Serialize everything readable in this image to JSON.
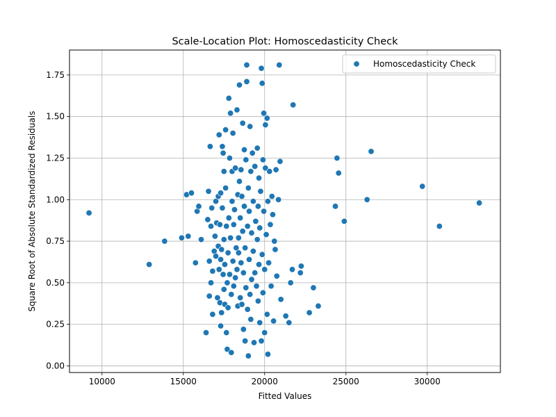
{
  "chart_data": {
    "type": "scatter",
    "title": "Scale-Location Plot: Homoscedasticity Check",
    "xlabel": "Fitted Values",
    "ylabel": "Square Root of Absolute Standardized Residuals",
    "xlim": [
      8000,
      34500
    ],
    "ylim": [
      -0.04,
      1.9
    ],
    "xticks": [
      10000,
      15000,
      20000,
      25000,
      30000
    ],
    "xtick_labels": [
      "10000",
      "15000",
      "20000",
      "25000",
      "30000"
    ],
    "yticks": [
      0.0,
      0.25,
      0.5,
      0.75,
      1.0,
      1.25,
      1.5,
      1.75
    ],
    "ytick_labels": [
      "0.00",
      "0.25",
      "0.50",
      "0.75",
      "1.00",
      "1.25",
      "1.50",
      "1.75"
    ],
    "grid": true,
    "legend_position": "upper-right",
    "marker_color": "#1f77b4",
    "series": [
      {
        "name": "Homoscedasticity Check",
        "points": [
          [
            9200,
            0.92
          ],
          [
            12900,
            0.61
          ],
          [
            13850,
            0.75
          ],
          [
            14900,
            0.77
          ],
          [
            15200,
            1.03
          ],
          [
            15300,
            0.78
          ],
          [
            15500,
            1.04
          ],
          [
            15750,
            0.62
          ],
          [
            15850,
            0.93
          ],
          [
            15950,
            0.96
          ],
          [
            16100,
            0.76
          ],
          [
            16400,
            0.2
          ],
          [
            16500,
            0.88
          ],
          [
            16550,
            1.05
          ],
          [
            16600,
            0.42
          ],
          [
            16600,
            0.63
          ],
          [
            16650,
            1.32
          ],
          [
            16700,
            0.84
          ],
          [
            16700,
            0.5
          ],
          [
            16750,
            0.95
          ],
          [
            16800,
            0.31
          ],
          [
            16800,
            0.57
          ],
          [
            16900,
            0.69
          ],
          [
            16950,
            0.78
          ],
          [
            17000,
            0.66
          ],
          [
            17000,
            0.99
          ],
          [
            17050,
            0.86
          ],
          [
            17100,
            0.41
          ],
          [
            17150,
            0.72
          ],
          [
            17150,
            1.02
          ],
          [
            17200,
            0.58
          ],
          [
            17200,
            1.39
          ],
          [
            17250,
            0.38
          ],
          [
            17250,
            0.85
          ],
          [
            17300,
            0.24
          ],
          [
            17300,
            0.64
          ],
          [
            17300,
            1.04
          ],
          [
            17350,
            0.7
          ],
          [
            17350,
            0.32
          ],
          [
            17400,
            0.95
          ],
          [
            17400,
            1.32
          ],
          [
            17450,
            0.55
          ],
          [
            17450,
            1.28
          ],
          [
            17500,
            0.46
          ],
          [
            17500,
            0.76
          ],
          [
            17500,
            1.17
          ],
          [
            17550,
            0.37
          ],
          [
            17550,
            0.61
          ],
          [
            17600,
            1.07
          ],
          [
            17600,
            1.42
          ],
          [
            17650,
            0.2
          ],
          [
            17650,
            0.84
          ],
          [
            17700,
            0.1
          ],
          [
            17700,
            0.5
          ],
          [
            17750,
            0.35
          ],
          [
            17750,
            0.68
          ],
          [
            17800,
            0.89
          ],
          [
            17800,
            1.61
          ],
          [
            17850,
            0.55
          ],
          [
            17850,
            1.25
          ],
          [
            17900,
            0.77
          ],
          [
            17900,
            1.52
          ],
          [
            17950,
            0.08
          ],
          [
            17950,
            0.43
          ],
          [
            18000,
            0.99
          ],
          [
            18000,
            1.17
          ],
          [
            18050,
            0.63
          ],
          [
            18050,
            1.4
          ],
          [
            18100,
            0.85
          ],
          [
            18100,
            0.48
          ],
          [
            18150,
            0.94
          ],
          [
            18200,
            1.19
          ],
          [
            18200,
            0.53
          ],
          [
            18250,
            0.71
          ],
          [
            18300,
            0.58
          ],
          [
            18300,
            1.54
          ],
          [
            18350,
            1.03
          ],
          [
            18350,
            0.36
          ],
          [
            18400,
            0.77
          ],
          [
            18400,
            0.68
          ],
          [
            18450,
            1.11
          ],
          [
            18450,
            1.69
          ],
          [
            18500,
            0.89
          ],
          [
            18500,
            0.41
          ],
          [
            18550,
            1.18
          ],
          [
            18550,
            0.62
          ],
          [
            18600,
            1.02
          ],
          [
            18600,
            0.37
          ],
          [
            18650,
            0.81
          ],
          [
            18650,
            1.46
          ],
          [
            18700,
            0.22
          ],
          [
            18700,
            0.56
          ],
          [
            18750,
            0.96
          ],
          [
            18750,
            1.3
          ],
          [
            18800,
            0.71
          ],
          [
            18800,
            0.15
          ],
          [
            18850,
            1.24
          ],
          [
            18850,
            0.47
          ],
          [
            18900,
            1.81
          ],
          [
            18900,
            1.71
          ],
          [
            18950,
            0.84
          ],
          [
            18950,
            0.34
          ],
          [
            19000,
            1.07
          ],
          [
            19000,
            0.06
          ],
          [
            19050,
            0.93
          ],
          [
            19050,
            0.64
          ],
          [
            19100,
            1.44
          ],
          [
            19100,
            0.43
          ],
          [
            19150,
            0.28
          ],
          [
            19150,
            1.17
          ],
          [
            19200,
            0.8
          ],
          [
            19200,
            0.52
          ],
          [
            19250,
            1.28
          ],
          [
            19300,
            0.99
          ],
          [
            19300,
            0.69
          ],
          [
            19350,
            0.14
          ],
          [
            19400,
            0.56
          ],
          [
            19400,
            1.2
          ],
          [
            19450,
            0.87
          ],
          [
            19500,
            0.48
          ],
          [
            19550,
            1.31
          ],
          [
            19550,
            0.76
          ],
          [
            19600,
            0.96
          ],
          [
            19600,
            0.39
          ],
          [
            19650,
            1.13
          ],
          [
            19650,
            0.61
          ],
          [
            19700,
            0.83
          ],
          [
            19700,
            0.26
          ],
          [
            19750,
            1.05
          ],
          [
            19800,
            1.79
          ],
          [
            19800,
            0.15
          ],
          [
            19850,
            1.7
          ],
          [
            19850,
            0.67
          ],
          [
            19900,
            1.24
          ],
          [
            19900,
            0.44
          ],
          [
            19950,
            0.93
          ],
          [
            19950,
            1.52
          ],
          [
            20000,
            0.58
          ],
          [
            20000,
            0.2
          ],
          [
            20050,
            1.45
          ],
          [
            20050,
            1.19
          ],
          [
            20100,
            0.79
          ],
          [
            20150,
            1.49
          ],
          [
            20150,
            0.31
          ],
          [
            20200,
            0.99
          ],
          [
            20200,
            0.07
          ],
          [
            20250,
            0.62
          ],
          [
            20300,
            1.17
          ],
          [
            20350,
            0.85
          ],
          [
            20400,
            0.48
          ],
          [
            20450,
            1.02
          ],
          [
            20500,
            0.91
          ],
          [
            20550,
            0.27
          ],
          [
            20600,
            0.75
          ],
          [
            20650,
            0.7
          ],
          [
            20700,
            1.18
          ],
          [
            20750,
            0.54
          ],
          [
            20850,
            1.0
          ],
          [
            20900,
            1.81
          ],
          [
            20950,
            1.23
          ],
          [
            21000,
            0.4
          ],
          [
            21300,
            0.3
          ],
          [
            21500,
            0.26
          ],
          [
            21600,
            0.5
          ],
          [
            21700,
            0.58
          ],
          [
            21750,
            1.57
          ],
          [
            22200,
            0.56
          ],
          [
            22250,
            0.6
          ],
          [
            22750,
            0.32
          ],
          [
            23000,
            0.47
          ],
          [
            23300,
            0.36
          ],
          [
            24350,
            0.96
          ],
          [
            24450,
            1.25
          ],
          [
            24550,
            1.16
          ],
          [
            24900,
            0.87
          ],
          [
            26300,
            1.0
          ],
          [
            26550,
            1.29
          ],
          [
            29700,
            1.08
          ],
          [
            30750,
            0.84
          ],
          [
            33200,
            0.98
          ]
        ]
      }
    ]
  }
}
